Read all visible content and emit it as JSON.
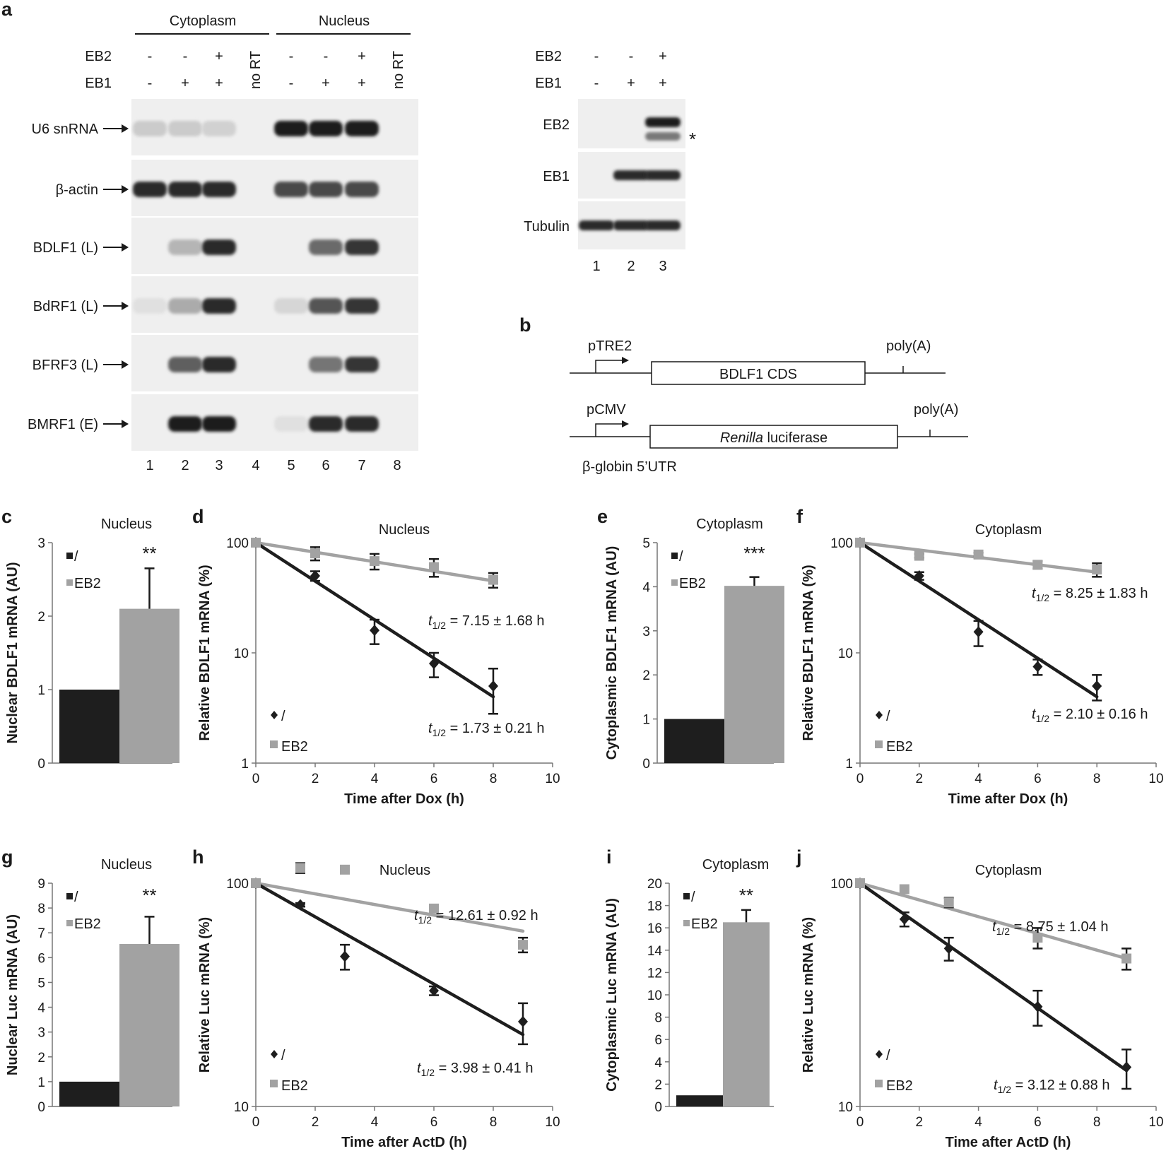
{
  "panel_letters": [
    "a",
    "b",
    "c",
    "d",
    "e",
    "f",
    "g",
    "h",
    "i",
    "j"
  ],
  "a": {
    "groups": [
      "Cytoplasm",
      "Nucleus"
    ],
    "rows": [
      {
        "name": "EB2",
        "values": [
          "-",
          "-",
          "+",
          "-",
          "-",
          "+"
        ]
      },
      {
        "name": "EB1",
        "values": [
          "-",
          "+",
          "+",
          "-",
          "+",
          "+"
        ]
      }
    ],
    "no_rt": "no RT",
    "genes": [
      "U6 snRNA",
      "β-actin",
      "BDLF1 (L)",
      "BdRF1 (L)",
      "BFRF3 (L)",
      "BMRF1 (E)"
    ],
    "band_intensity": [
      [
        0.15,
        0.15,
        0.12,
        0,
        0.95,
        0.95,
        0.95,
        0
      ],
      [
        0.9,
        0.9,
        0.9,
        0,
        0.75,
        0.75,
        0.75,
        0
      ],
      [
        0,
        0.25,
        0.9,
        0,
        0,
        0.6,
        0.85,
        0
      ],
      [
        0.05,
        0.3,
        0.9,
        0,
        0.1,
        0.7,
        0.85,
        0
      ],
      [
        0,
        0.65,
        0.9,
        0,
        0,
        0.55,
        0.85,
        0
      ],
      [
        0,
        0.95,
        0.95,
        0,
        0.05,
        0.9,
        0.9,
        0
      ]
    ],
    "lanes": [
      "1",
      "2",
      "3",
      "4",
      "5",
      "6",
      "7",
      "8"
    ]
  },
  "western": {
    "rows": [
      {
        "name": "EB2",
        "values": [
          "-",
          "-",
          "+"
        ]
      },
      {
        "name": "EB1",
        "values": [
          "-",
          "+",
          "+"
        ]
      }
    ],
    "blots": [
      "EB2",
      "EB1",
      "Tubulin"
    ],
    "band_intensity": [
      [
        0,
        0,
        0.95
      ],
      [
        0,
        0.9,
        0.9
      ],
      [
        0.9,
        0.9,
        0.9
      ]
    ],
    "asterisk": "*",
    "lanes": [
      "1",
      "2",
      "3"
    ]
  },
  "b": {
    "construct1": {
      "promoter": "pTRE2",
      "box": "BDLF1 CDS",
      "polya": "poly(A)"
    },
    "construct2": {
      "promoter": "pCMV",
      "box_italic": "Renilla",
      "box_rest": " luciferase",
      "polya": "poly(A)",
      "utr": "β-globin 5’UTR"
    }
  },
  "chart_data": [
    {
      "panel": "c",
      "type": "bar",
      "title": "Nucleus",
      "ylabel": "Nuclear BDLF1 mRNA (AU)",
      "ylim": [
        0,
        3
      ],
      "yticks": [
        "0",
        "1",
        "2",
        "3"
      ],
      "series": [
        {
          "name": "/",
          "color": "#1e1e1e",
          "values": [
            1.0
          ],
          "err": [
            0.0
          ]
        },
        {
          "name": "EB2",
          "color": "#a2a2a2",
          "values": [
            2.1
          ],
          "err": [
            0.55
          ]
        }
      ],
      "sig": "**"
    },
    {
      "panel": "d",
      "type": "line",
      "scale": "log",
      "title": "Nucleus",
      "xlabel": "Time after Dox (h)",
      "ylabel": "Relative BDLF1 mRNA (%)",
      "xlim": [
        0,
        10
      ],
      "ylim": [
        1,
        100
      ],
      "xticks": [
        "0",
        "2",
        "4",
        "6",
        "8",
        "10"
      ],
      "yticks": [
        "1",
        "10",
        "100"
      ],
      "series": [
        {
          "name": "/",
          "color": "#1e1e1e",
          "x": [
            0,
            2,
            4,
            6,
            8
          ],
          "y": [
            100,
            50,
            16,
            8,
            5
          ],
          "err": [
            0,
            5,
            4,
            2,
            2.2
          ],
          "fit": [
            [
              0,
              100
            ],
            [
              8,
              4
            ]
          ]
        },
        {
          "name": "EB2",
          "color": "#a2a2a2",
          "x": [
            0,
            2,
            4,
            6,
            8
          ],
          "y": [
            100,
            80,
            68,
            60,
            46
          ],
          "err": [
            0,
            11,
            11,
            11,
            7
          ],
          "fit": [
            [
              0,
              100
            ],
            [
              8,
              45
            ]
          ]
        }
      ],
      "annotations": [
        {
          "prefix": "t",
          "sub": "1/2",
          "text": " = 7.15 ± 1.68 h"
        },
        {
          "prefix": "t",
          "sub": "1/2",
          "text": " = 1.73 ± 0.21 h"
        }
      ]
    },
    {
      "panel": "e",
      "type": "bar",
      "title": "Cytoplasm",
      "ylabel": "Cytoplasmic BDLF1 mRNA (AU)",
      "ylim": [
        0,
        5
      ],
      "yticks": [
        "0",
        "1",
        "2",
        "3",
        "4",
        "5"
      ],
      "series": [
        {
          "name": "/",
          "color": "#1e1e1e",
          "values": [
            1.0
          ],
          "err": [
            0.0
          ]
        },
        {
          "name": "EB2",
          "color": "#a2a2a2",
          "values": [
            4.02
          ],
          "err": [
            0.2
          ]
        }
      ],
      "sig": "***"
    },
    {
      "panel": "f",
      "type": "line",
      "scale": "log",
      "title": "Cytoplasm",
      "xlabel": "Time after Dox (h)",
      "ylabel": "Relative BDLF1 mRNA (%)",
      "xlim": [
        0,
        10
      ],
      "ylim": [
        1,
        100
      ],
      "xticks": [
        "0",
        "2",
        "4",
        "6",
        "8",
        "10"
      ],
      "yticks": [
        "1",
        "10",
        "100"
      ],
      "series": [
        {
          "name": "/",
          "color": "#1e1e1e",
          "x": [
            0,
            2,
            4,
            6,
            8
          ],
          "y": [
            100,
            50,
            15.5,
            7.5,
            5
          ],
          "err": [
            0,
            4,
            4,
            1.2,
            1.3
          ],
          "fit": [
            [
              0,
              100
            ],
            [
              8,
              4
            ]
          ]
        },
        {
          "name": "EB2",
          "color": "#a2a2a2",
          "x": [
            0,
            2,
            4,
            6,
            8
          ],
          "y": [
            100,
            76,
            78,
            63,
            57
          ],
          "err": [
            0,
            3,
            3,
            5,
            8
          ],
          "fit": [
            [
              0,
              100
            ],
            [
              8,
              54
            ]
          ]
        }
      ],
      "annotations": [
        {
          "prefix": "t",
          "sub": "1/2",
          "text": " = 8.25 ± 1.83 h"
        },
        {
          "prefix": "t",
          "sub": "1/2",
          "text": " = 2.10 ± 0.16 h"
        }
      ]
    },
    {
      "panel": "g",
      "type": "bar",
      "title": "Nucleus",
      "ylabel": "Nuclear Luc mRNA (AU)",
      "ylim": [
        0,
        9
      ],
      "yticks": [
        "0",
        "1",
        "2",
        "3",
        "4",
        "5",
        "6",
        "7",
        "8",
        "9"
      ],
      "series": [
        {
          "name": "/",
          "color": "#1e1e1e",
          "values": [
            1.0
          ],
          "err": [
            0.0
          ]
        },
        {
          "name": "EB2",
          "color": "#a2a2a2",
          "values": [
            6.55
          ],
          "err": [
            1.1
          ]
        }
      ],
      "sig": "**"
    },
    {
      "panel": "h",
      "type": "line",
      "scale": "log",
      "title": "Nucleus",
      "xlabel": "Time after ActD (h)",
      "ylabel": "Relative Luc mRNA (%)",
      "xlim": [
        0,
        10
      ],
      "ylim": [
        10,
        100
      ],
      "xticks": [
        "0",
        "2",
        "4",
        "6",
        "8",
        "10"
      ],
      "yticks": [
        "10",
        "100"
      ],
      "series": [
        {
          "name": "/",
          "color": "#1e1e1e",
          "x": [
            0,
            1.5,
            3,
            6,
            9
          ],
          "y": [
            100,
            80,
            47,
            33,
            24
          ],
          "err": [
            0,
            1.5,
            6,
            1.5,
            5
          ],
          "fit": [
            [
              0,
              100
            ],
            [
              9,
              21
            ]
          ]
        },
        {
          "name": "EB2",
          "color": "#a2a2a2",
          "x": [
            0,
            1.5,
            3,
            6,
            9
          ],
          "y": [
            100,
            117,
            115,
            77,
            53
          ],
          "err": [
            0,
            6,
            0,
            0,
            4
          ],
          "fit": [
            [
              0,
              100
            ],
            [
              9,
              61
            ]
          ]
        }
      ],
      "annotations": [
        {
          "prefix": "t",
          "sub": "1/2",
          "text": " = 12.61 ± 0.92 h"
        },
        {
          "prefix": "t",
          "sub": "1/2",
          "text": " = 3.98 ± 0.41 h"
        }
      ]
    },
    {
      "panel": "i",
      "type": "bar",
      "title": "Cytoplasm",
      "ylabel": "Cytoplasmic Luc mRNA (AU)",
      "ylim": [
        0,
        20
      ],
      "yticks": [
        "0",
        "2",
        "4",
        "6",
        "8",
        "10",
        "12",
        "14",
        "16",
        "18",
        "20"
      ],
      "series": [
        {
          "name": "/",
          "color": "#1e1e1e",
          "values": [
            1.0
          ],
          "err": [
            0.0
          ]
        },
        {
          "name": "EB2",
          "color": "#a2a2a2",
          "values": [
            16.5
          ],
          "err": [
            1.1
          ]
        }
      ],
      "sig": "**"
    },
    {
      "panel": "j",
      "type": "line",
      "scale": "log",
      "title": "Cytoplasm",
      "xlabel": "Time after ActD (h)",
      "ylabel": "Relative Luc mRNA (%)",
      "xlim": [
        0,
        10
      ],
      "ylim": [
        10,
        100
      ],
      "xticks": [
        "0",
        "2",
        "4",
        "6",
        "8",
        "10"
      ],
      "yticks": [
        "10",
        "100"
      ],
      "series": [
        {
          "name": "/",
          "color": "#1e1e1e",
          "x": [
            0,
            1.5,
            3,
            6,
            9
          ],
          "y": [
            100,
            69,
            51,
            28,
            15
          ],
          "err": [
            0,
            5,
            6,
            5,
            3
          ],
          "fit": [
            [
              0,
              100
            ],
            [
              9,
              14.5
            ]
          ]
        },
        {
          "name": "EB2",
          "color": "#a2a2a2",
          "x": [
            0,
            1.5,
            3,
            6,
            9
          ],
          "y": [
            100,
            94,
            82,
            57,
            46
          ],
          "err": [
            0,
            0,
            4,
            6,
            5
          ],
          "fit": [
            [
              0,
              100
            ],
            [
              9,
              46
            ]
          ]
        }
      ],
      "annotations": [
        {
          "prefix": "t",
          "sub": "1/2",
          "text": " = 8.75 ± 1.04 h"
        },
        {
          "prefix": "t",
          "sub": "1/2",
          "text": " = 3.12 ± 0.88 h"
        }
      ]
    }
  ]
}
